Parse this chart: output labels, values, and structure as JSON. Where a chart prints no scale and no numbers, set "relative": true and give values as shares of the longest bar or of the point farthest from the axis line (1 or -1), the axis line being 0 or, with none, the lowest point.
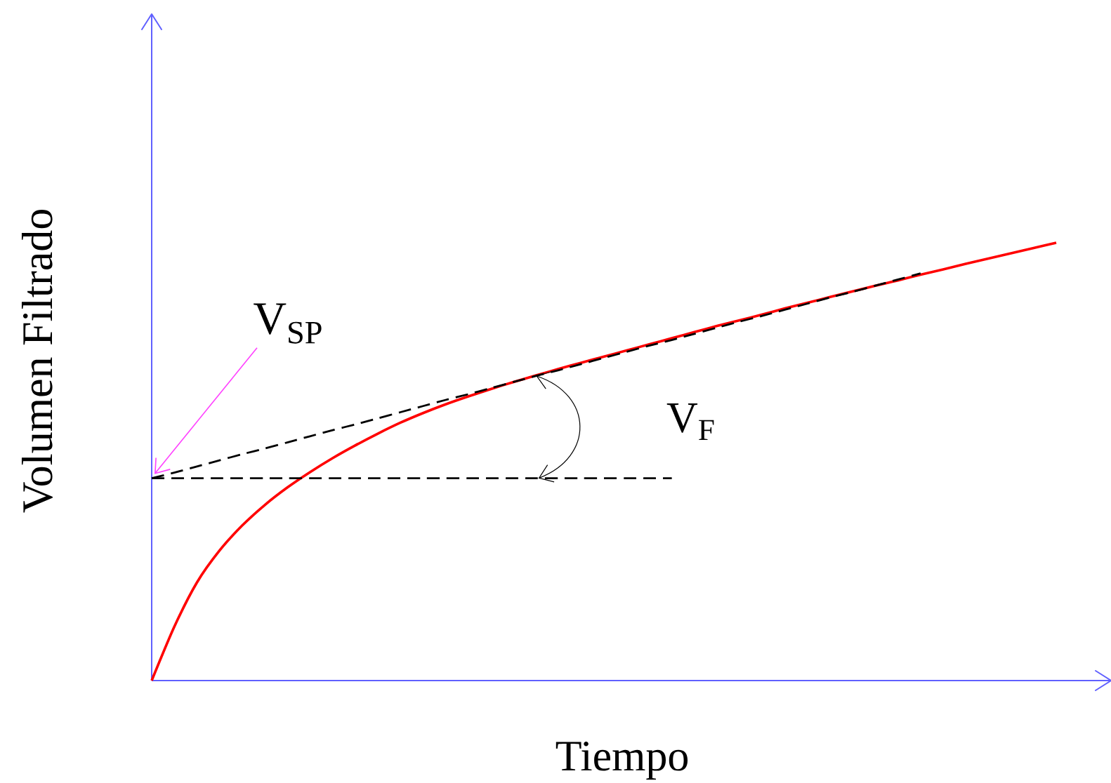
{
  "chart_data": {
    "type": "line",
    "relative": true,
    "xlabel": "Tiempo",
    "ylabel": "Volumen Filtrado",
    "categories": [
      null,
      null,
      null,
      null,
      null,
      null,
      null,
      null,
      null,
      null,
      null,
      null,
      null,
      null,
      null,
      null,
      null,
      null,
      null,
      null,
      null,
      null,
      null,
      null,
      null,
      null,
      null,
      null,
      null,
      null,
      null,
      null,
      null,
      null,
      null,
      null,
      null,
      null,
      null,
      null,
      null
    ],
    "series": [
      {
        "color": "#ff0000",
        "values": [
          0,
          0.123,
          0.224,
          0.297,
          0.354,
          0.401,
          0.441,
          0.476,
          0.508,
          0.537,
          0.564,
          0.589,
          0.611,
          0.631,
          0.649,
          0.666,
          0.682,
          0.697,
          0.712,
          0.726,
          0.74,
          0.754,
          0.768,
          0.782,
          0.796,
          0.81,
          0.823,
          0.836,
          0.85,
          0.863,
          0.876,
          0.889,
          0.902,
          0.914,
          0.927,
          0.939,
          0.952,
          0.964,
          0.976,
          0.988,
          1
        ]
      },
      {
        "color": "#000000",
        "line_style": "dashed",
        "values": [
          0.462,
          0.475,
          0.489,
          0.503,
          0.517,
          0.53,
          0.544,
          0.558,
          0.572,
          0.585,
          0.599,
          0.613,
          0.627,
          0.641,
          0.654,
          0.668,
          0.682,
          0.696,
          0.709,
          0.723,
          0.737,
          0.751,
          0.765,
          0.778,
          0.792,
          0.806,
          0.82,
          0.833,
          0.847,
          0.861,
          0.875,
          0.888,
          0.902,
          0.916,
          0.93,
          null,
          null,
          null,
          null,
          null,
          null
        ]
      },
      {
        "color": "#000000",
        "line_style": "dashed",
        "values": [
          0.462,
          0.462,
          0.462,
          0.462,
          0.462,
          0.462,
          0.462,
          0.462,
          0.462,
          0.462,
          0.462,
          0.462,
          0.462,
          0.462,
          0.462,
          0.462,
          0.462,
          0.462,
          0.462,
          0.462,
          0.462,
          0.462,
          0.462,
          0.462,
          null,
          null,
          null,
          null,
          null,
          null,
          null,
          null,
          null,
          null,
          null,
          null,
          null,
          null,
          null,
          null,
          null
        ]
      }
    ],
    "annotations": [
      {
        "text": "V$_{SP}$",
        "y": 0.462
      },
      "V$_{F}$"
    ]
  }
}
